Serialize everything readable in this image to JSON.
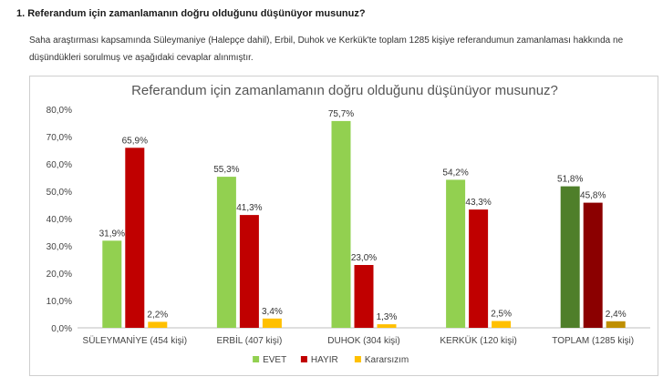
{
  "heading": "1. Referandum için zamanlamanın doğru olduğunu düşünüyor musunuz?",
  "intro": "Saha araştırması kapsamında Süleymaniye (Halepçe dahil), Erbil, Duhok ve Kerkük'te toplam 1285 kişiye referandumun zamanlaması hakkında ne düşündükleri sorulmuş ve aşağıdaki cevaplar alınmıştır.",
  "chart_data": {
    "type": "bar",
    "title": "Referandum için zamanlamanın doğru olduğunu düşünüyor musunuz?",
    "categories": [
      "SÜLEYMANİYE (454 kişi)",
      "ERBİL (407 kişi)",
      "DUHOK (304 kişi)",
      "KERKÜK (120 kişi)",
      "TOPLAM (1285 kişi)"
    ],
    "series": [
      {
        "name": "EVET",
        "values": [
          31.9,
          55.3,
          75.7,
          54.2,
          51.8
        ],
        "color": "#92d050",
        "labels": [
          "31,9%",
          "55,3%",
          "75,7%",
          "54,2%",
          "51,8%"
        ]
      },
      {
        "name": "HAYIR",
        "values": [
          65.9,
          41.3,
          23.0,
          43.3,
          45.8
        ],
        "color": "#c00000",
        "labels": [
          "65,9%",
          "41,3%",
          "23,0%",
          "43,3%",
          "45,8%"
        ]
      },
      {
        "name": "Kararsızım",
        "values": [
          2.2,
          3.4,
          1.3,
          2.5,
          2.4
        ],
        "color": "#ffc000",
        "labels": [
          "2,2%",
          "3,4%",
          "1,3%",
          "2,5%",
          "2,4%"
        ]
      }
    ],
    "total_colors": [
      "#4f7f2a",
      "#8b0000",
      "#bf8f00"
    ],
    "ylim": [
      0,
      80
    ],
    "yticks": [
      "0,0%",
      "10,0%",
      "20,0%",
      "30,0%",
      "40,0%",
      "50,0%",
      "60,0%",
      "70,0%",
      "80,0%"
    ],
    "grid": false,
    "legend": "bottom-center"
  }
}
